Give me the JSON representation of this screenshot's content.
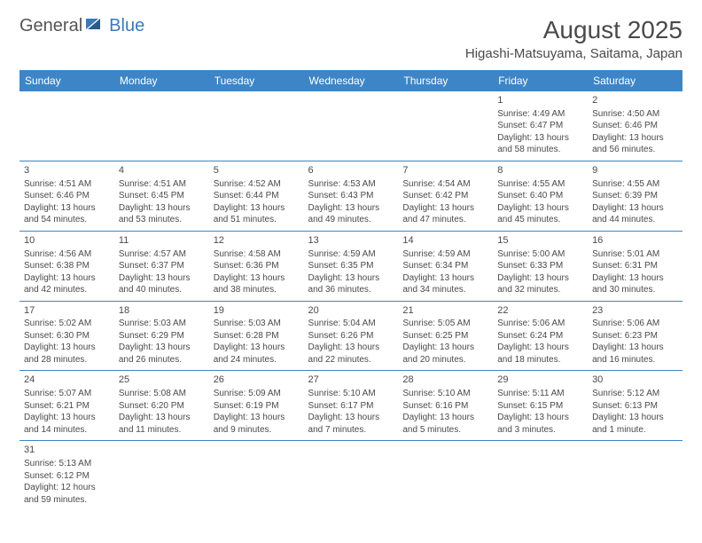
{
  "logo": {
    "general": "General",
    "blue": "Blue"
  },
  "title": "August 2025",
  "location": "Higashi-Matsuyama, Saitama, Japan",
  "day_headers": [
    "Sunday",
    "Monday",
    "Tuesday",
    "Wednesday",
    "Thursday",
    "Friday",
    "Saturday"
  ],
  "colors": {
    "header_bg": "#3d85c6",
    "header_fg": "#ffffff",
    "text": "#4a4a4a",
    "accent": "#3a7ab8"
  },
  "weeks": [
    [
      null,
      null,
      null,
      null,
      null,
      {
        "n": "1",
        "sr": "Sunrise: 4:49 AM",
        "ss": "Sunset: 6:47 PM",
        "d1": "Daylight: 13 hours",
        "d2": "and 58 minutes."
      },
      {
        "n": "2",
        "sr": "Sunrise: 4:50 AM",
        "ss": "Sunset: 6:46 PM",
        "d1": "Daylight: 13 hours",
        "d2": "and 56 minutes."
      }
    ],
    [
      {
        "n": "3",
        "sr": "Sunrise: 4:51 AM",
        "ss": "Sunset: 6:46 PM",
        "d1": "Daylight: 13 hours",
        "d2": "and 54 minutes."
      },
      {
        "n": "4",
        "sr": "Sunrise: 4:51 AM",
        "ss": "Sunset: 6:45 PM",
        "d1": "Daylight: 13 hours",
        "d2": "and 53 minutes."
      },
      {
        "n": "5",
        "sr": "Sunrise: 4:52 AM",
        "ss": "Sunset: 6:44 PM",
        "d1": "Daylight: 13 hours",
        "d2": "and 51 minutes."
      },
      {
        "n": "6",
        "sr": "Sunrise: 4:53 AM",
        "ss": "Sunset: 6:43 PM",
        "d1": "Daylight: 13 hours",
        "d2": "and 49 minutes."
      },
      {
        "n": "7",
        "sr": "Sunrise: 4:54 AM",
        "ss": "Sunset: 6:42 PM",
        "d1": "Daylight: 13 hours",
        "d2": "and 47 minutes."
      },
      {
        "n": "8",
        "sr": "Sunrise: 4:55 AM",
        "ss": "Sunset: 6:40 PM",
        "d1": "Daylight: 13 hours",
        "d2": "and 45 minutes."
      },
      {
        "n": "9",
        "sr": "Sunrise: 4:55 AM",
        "ss": "Sunset: 6:39 PM",
        "d1": "Daylight: 13 hours",
        "d2": "and 44 minutes."
      }
    ],
    [
      {
        "n": "10",
        "sr": "Sunrise: 4:56 AM",
        "ss": "Sunset: 6:38 PM",
        "d1": "Daylight: 13 hours",
        "d2": "and 42 minutes."
      },
      {
        "n": "11",
        "sr": "Sunrise: 4:57 AM",
        "ss": "Sunset: 6:37 PM",
        "d1": "Daylight: 13 hours",
        "d2": "and 40 minutes."
      },
      {
        "n": "12",
        "sr": "Sunrise: 4:58 AM",
        "ss": "Sunset: 6:36 PM",
        "d1": "Daylight: 13 hours",
        "d2": "and 38 minutes."
      },
      {
        "n": "13",
        "sr": "Sunrise: 4:59 AM",
        "ss": "Sunset: 6:35 PM",
        "d1": "Daylight: 13 hours",
        "d2": "and 36 minutes."
      },
      {
        "n": "14",
        "sr": "Sunrise: 4:59 AM",
        "ss": "Sunset: 6:34 PM",
        "d1": "Daylight: 13 hours",
        "d2": "and 34 minutes."
      },
      {
        "n": "15",
        "sr": "Sunrise: 5:00 AM",
        "ss": "Sunset: 6:33 PM",
        "d1": "Daylight: 13 hours",
        "d2": "and 32 minutes."
      },
      {
        "n": "16",
        "sr": "Sunrise: 5:01 AM",
        "ss": "Sunset: 6:31 PM",
        "d1": "Daylight: 13 hours",
        "d2": "and 30 minutes."
      }
    ],
    [
      {
        "n": "17",
        "sr": "Sunrise: 5:02 AM",
        "ss": "Sunset: 6:30 PM",
        "d1": "Daylight: 13 hours",
        "d2": "and 28 minutes."
      },
      {
        "n": "18",
        "sr": "Sunrise: 5:03 AM",
        "ss": "Sunset: 6:29 PM",
        "d1": "Daylight: 13 hours",
        "d2": "and 26 minutes."
      },
      {
        "n": "19",
        "sr": "Sunrise: 5:03 AM",
        "ss": "Sunset: 6:28 PM",
        "d1": "Daylight: 13 hours",
        "d2": "and 24 minutes."
      },
      {
        "n": "20",
        "sr": "Sunrise: 5:04 AM",
        "ss": "Sunset: 6:26 PM",
        "d1": "Daylight: 13 hours",
        "d2": "and 22 minutes."
      },
      {
        "n": "21",
        "sr": "Sunrise: 5:05 AM",
        "ss": "Sunset: 6:25 PM",
        "d1": "Daylight: 13 hours",
        "d2": "and 20 minutes."
      },
      {
        "n": "22",
        "sr": "Sunrise: 5:06 AM",
        "ss": "Sunset: 6:24 PM",
        "d1": "Daylight: 13 hours",
        "d2": "and 18 minutes."
      },
      {
        "n": "23",
        "sr": "Sunrise: 5:06 AM",
        "ss": "Sunset: 6:23 PM",
        "d1": "Daylight: 13 hours",
        "d2": "and 16 minutes."
      }
    ],
    [
      {
        "n": "24",
        "sr": "Sunrise: 5:07 AM",
        "ss": "Sunset: 6:21 PM",
        "d1": "Daylight: 13 hours",
        "d2": "and 14 minutes."
      },
      {
        "n": "25",
        "sr": "Sunrise: 5:08 AM",
        "ss": "Sunset: 6:20 PM",
        "d1": "Daylight: 13 hours",
        "d2": "and 11 minutes."
      },
      {
        "n": "26",
        "sr": "Sunrise: 5:09 AM",
        "ss": "Sunset: 6:19 PM",
        "d1": "Daylight: 13 hours",
        "d2": "and 9 minutes."
      },
      {
        "n": "27",
        "sr": "Sunrise: 5:10 AM",
        "ss": "Sunset: 6:17 PM",
        "d1": "Daylight: 13 hours",
        "d2": "and 7 minutes."
      },
      {
        "n": "28",
        "sr": "Sunrise: 5:10 AM",
        "ss": "Sunset: 6:16 PM",
        "d1": "Daylight: 13 hours",
        "d2": "and 5 minutes."
      },
      {
        "n": "29",
        "sr": "Sunrise: 5:11 AM",
        "ss": "Sunset: 6:15 PM",
        "d1": "Daylight: 13 hours",
        "d2": "and 3 minutes."
      },
      {
        "n": "30",
        "sr": "Sunrise: 5:12 AM",
        "ss": "Sunset: 6:13 PM",
        "d1": "Daylight: 13 hours",
        "d2": "and 1 minute."
      }
    ],
    [
      {
        "n": "31",
        "sr": "Sunrise: 5:13 AM",
        "ss": "Sunset: 6:12 PM",
        "d1": "Daylight: 12 hours",
        "d2": "and 59 minutes."
      },
      null,
      null,
      null,
      null,
      null,
      null
    ]
  ]
}
